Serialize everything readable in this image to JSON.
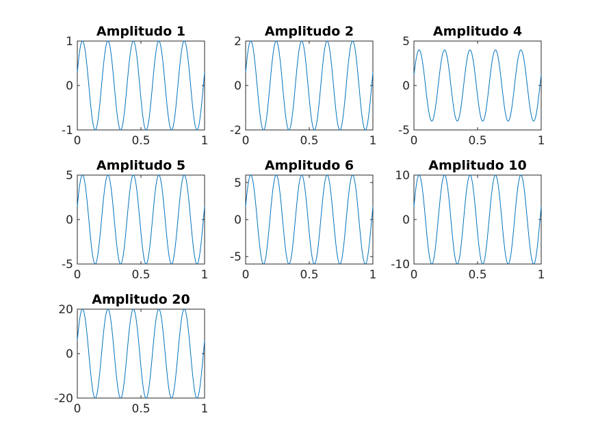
{
  "chart_data": [
    {
      "type": "line",
      "title": "Amplitudo 1",
      "xlim": [
        0,
        1
      ],
      "ylim": [
        -1,
        1
      ],
      "amplitude": 1,
      "frequency_hz": 5,
      "phase_rad": 0.3,
      "x_tick_labels": [
        "0",
        "0.5",
        "1"
      ],
      "y_tick_values": [
        -1,
        0,
        1
      ],
      "y_tick_labels": [
        "-1",
        "0",
        "1"
      ]
    },
    {
      "type": "line",
      "title": "Amplitudo 2",
      "xlim": [
        0,
        1
      ],
      "ylim": [
        -2,
        2
      ],
      "amplitude": 2,
      "frequency_hz": 5,
      "phase_rad": 0.3,
      "x_tick_labels": [
        "0",
        "0.5",
        "1"
      ],
      "y_tick_values": [
        -2,
        0,
        2
      ],
      "y_tick_labels": [
        "-2",
        "0",
        "2"
      ]
    },
    {
      "type": "line",
      "title": "Amplitudo 4",
      "xlim": [
        0,
        1
      ],
      "ylim": [
        -5,
        5
      ],
      "amplitude": 4,
      "frequency_hz": 5,
      "phase_rad": 0.3,
      "x_tick_labels": [
        "0",
        "0.5",
        "1"
      ],
      "y_tick_values": [
        -5,
        0,
        5
      ],
      "y_tick_labels": [
        "-5",
        "0",
        "5"
      ]
    },
    {
      "type": "line",
      "title": "Amplitudo 5",
      "xlim": [
        0,
        1
      ],
      "ylim": [
        -5,
        5
      ],
      "amplitude": 5,
      "frequency_hz": 5,
      "phase_rad": 0.3,
      "x_tick_labels": [
        "0",
        "0.5",
        "1"
      ],
      "y_tick_values": [
        -5,
        0,
        5
      ],
      "y_tick_labels": [
        "-5",
        "0",
        "5"
      ]
    },
    {
      "type": "line",
      "title": "Amplitudo 6",
      "xlim": [
        0,
        1
      ],
      "ylim": [
        -6,
        6
      ],
      "amplitude": 6,
      "frequency_hz": 5,
      "phase_rad": 0.3,
      "x_tick_labels": [
        "0",
        "0.5",
        "1"
      ],
      "y_tick_values": [
        -5,
        0,
        5
      ],
      "y_tick_labels": [
        "-5",
        "0",
        "5"
      ]
    },
    {
      "type": "line",
      "title": "Amplitudo 10",
      "xlim": [
        0,
        1
      ],
      "ylim": [
        -10,
        10
      ],
      "amplitude": 10,
      "frequency_hz": 5,
      "phase_rad": 0.3,
      "x_tick_labels": [
        "0",
        "0.5",
        "1"
      ],
      "y_tick_values": [
        -10,
        0,
        10
      ],
      "y_tick_labels": [
        "-10",
        "0",
        "10"
      ]
    },
    {
      "type": "line",
      "title": "Amplitudo 20",
      "xlim": [
        0,
        1
      ],
      "ylim": [
        -20,
        20
      ],
      "amplitude": 20,
      "frequency_hz": 5,
      "phase_rad": 0.3,
      "x_tick_labels": [
        "0",
        "0.5",
        "1"
      ],
      "y_tick_values": [
        -20,
        0,
        20
      ],
      "y_tick_labels": [
        "-20",
        "0",
        "20"
      ]
    }
  ],
  "line_color": "#0072bd"
}
